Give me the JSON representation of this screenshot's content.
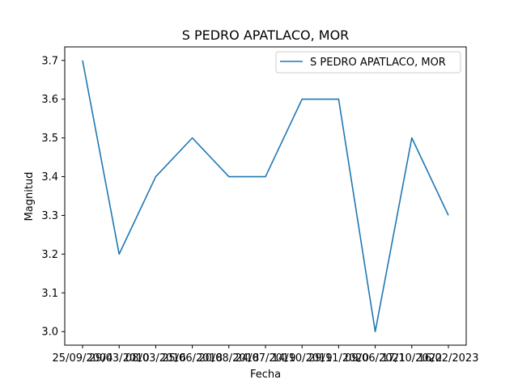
{
  "chart_data": {
    "type": "line",
    "title": "S PEDRO APATLACO, MOR",
    "xlabel": "Fecha",
    "ylabel": "Magnitud",
    "categories": [
      "25/09/2004",
      "29/03/2010",
      "08/03/2016",
      "25/06/2018",
      "20/08/2018",
      "24/07/2019",
      "14/10/2019",
      "29/11/2020",
      "09/06/2021",
      "17/10/2022",
      "16/02/2023"
    ],
    "series": [
      {
        "name": "S PEDRO APATLACO, MOR",
        "color": "#1f77b4",
        "values": [
          3.7,
          3.2,
          3.4,
          3.5,
          3.4,
          3.4,
          3.6,
          3.6,
          3.0,
          3.5,
          3.3
        ]
      }
    ],
    "ylim": [
      2.965,
      3.735
    ],
    "yticks": [
      3.0,
      3.1,
      3.2,
      3.3,
      3.4,
      3.5,
      3.6,
      3.7
    ],
    "ytick_labels": [
      "3.0",
      "3.1",
      "3.2",
      "3.3",
      "3.4",
      "3.5",
      "3.6",
      "3.7"
    ],
    "grid": false,
    "legend_position": "top-right"
  }
}
